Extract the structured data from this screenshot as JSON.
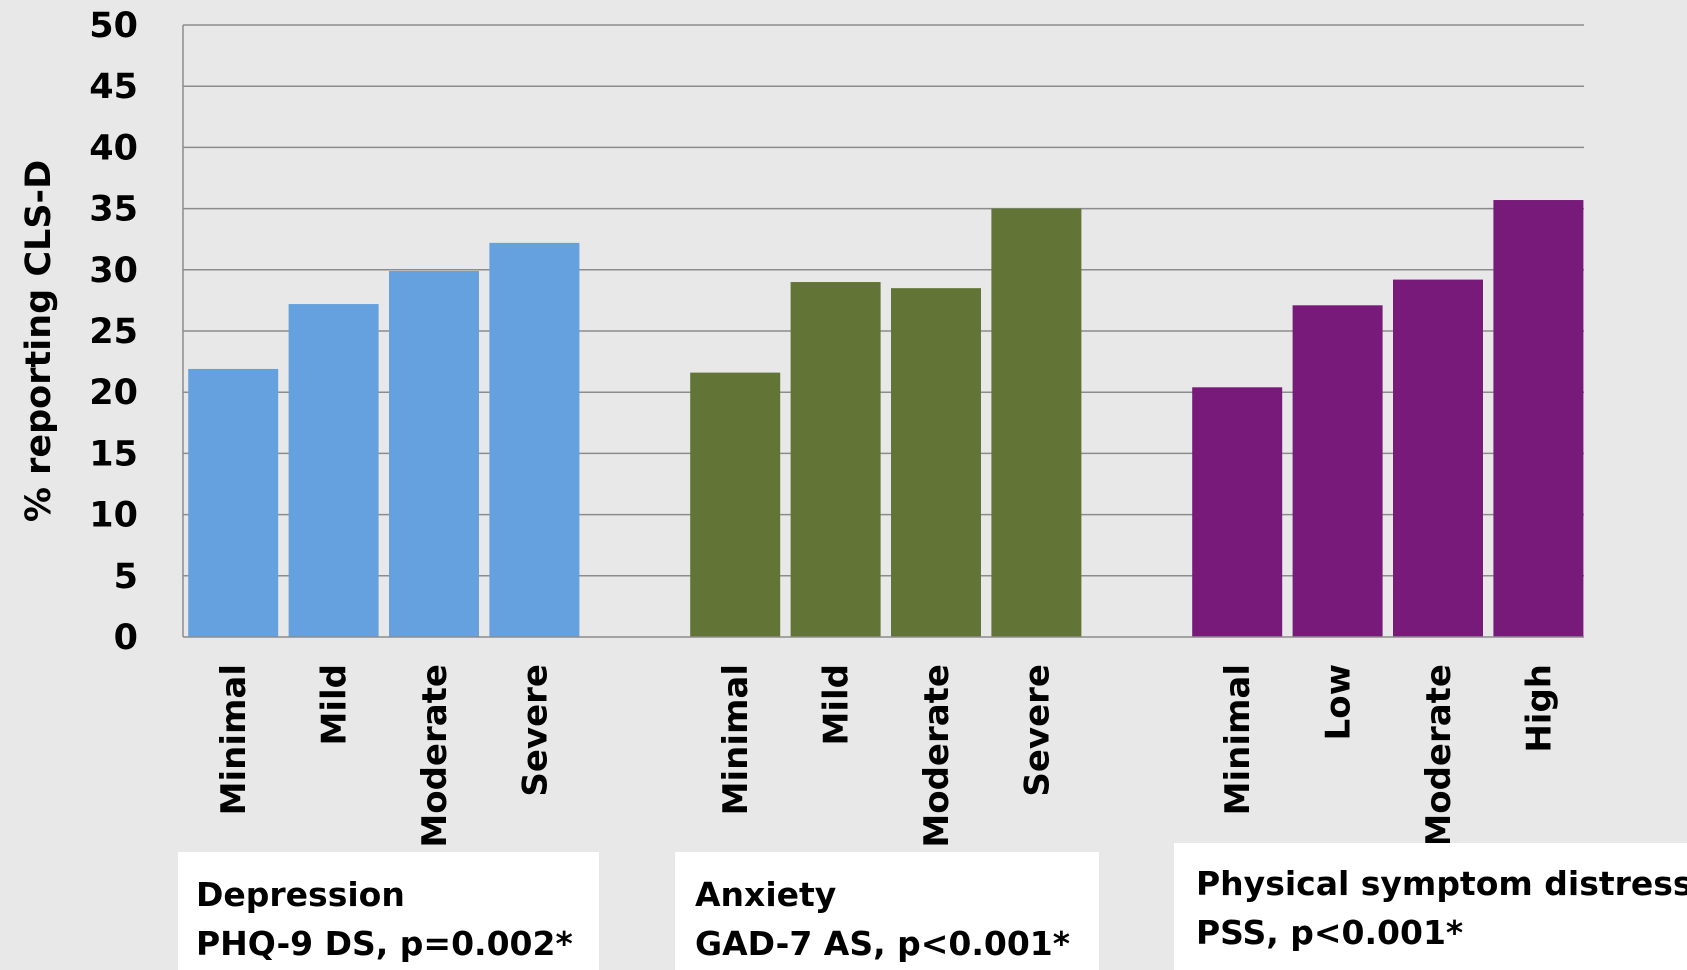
{
  "chart_data": {
    "type": "bar",
    "ylabel": "% reporting CLS-D",
    "ylim": [
      0,
      50
    ],
    "yticks": [
      0,
      5,
      10,
      15,
      20,
      25,
      30,
      35,
      40,
      45,
      50
    ],
    "grid": true,
    "groups": [
      {
        "name": "Depression",
        "subtitle": "PHQ-9 DS, p=0.002*",
        "color": "#64a1de",
        "categories": [
          "Minimal",
          "Mild",
          "Moderate",
          "Severe"
        ],
        "values": [
          21.9,
          27.2,
          29.9,
          32.2
        ]
      },
      {
        "name": "Anxiety",
        "subtitle": "GAD-7 AS, p<0.001*",
        "color": "#627436",
        "categories": [
          "Minimal",
          "Mild",
          "Moderate",
          "Severe"
        ],
        "values": [
          21.6,
          29.0,
          28.5,
          35.0
        ]
      },
      {
        "name": "Physical symptom distress",
        "subtitle": "PSS, p<0.001*",
        "color": "#781a79",
        "categories": [
          "Minimal",
          "Low",
          "Moderate",
          "High"
        ],
        "values": [
          20.4,
          27.1,
          29.2,
          35.7
        ]
      }
    ]
  }
}
